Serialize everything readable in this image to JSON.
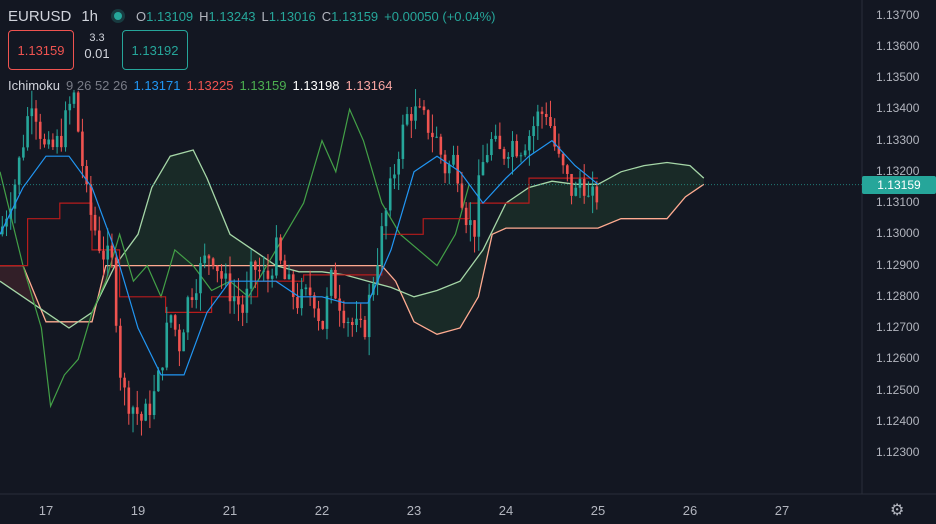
{
  "header": {
    "symbol": "EURUSD",
    "timeframe": "1h",
    "ohlc": [
      {
        "k": "O",
        "v": "1.13109"
      },
      {
        "k": "H",
        "v": "1.13243"
      },
      {
        "k": "L",
        "v": "1.13016"
      },
      {
        "k": "C",
        "v": "1.13159"
      }
    ],
    "change": "+0.00050 (+0.04%)"
  },
  "trade": {
    "sell_price": "1.13159",
    "buy_price": "1.13192",
    "spread_top": "3.3",
    "spread_bottom": "0.01"
  },
  "indicator": {
    "name": "Ichimoku",
    "params": "9 26 52 26",
    "values": [
      "1.13171",
      "1.13225",
      "1.13159",
      "1.13198",
      "1.13164"
    ],
    "colors": [
      "#2196f3",
      "#ef5350",
      "#4caf50",
      "#ffffff",
      "#f8a5a2"
    ]
  },
  "price_tag": "1.13159",
  "colors": {
    "up": "#26a69a",
    "down": "#ef5350",
    "tenkan": "#2196f3",
    "kijun": "#b71c1c",
    "chikou": "#43a047",
    "spanA": "#a5d6a7",
    "spanB": "#ffab91"
  },
  "chart_data": {
    "type": "candlestick",
    "y_ticks": [
      "1.13700",
      "1.13600",
      "1.13500",
      "1.13400",
      "1.13300",
      "1.13200",
      "1.13100",
      "1.13000",
      "1.12900",
      "1.12800",
      "1.12700",
      "1.12600",
      "1.12500",
      "1.12400",
      "1.12300"
    ],
    "x_ticks": [
      "17",
      "19",
      "21",
      "22",
      "23",
      "24",
      "25",
      "26",
      "27"
    ],
    "ylim": [
      1.1222,
      1.1375
    ],
    "x_tick_positions": [
      1.0,
      3.0,
      5.0,
      7.0,
      9.0,
      11.0,
      13.0,
      15.0,
      17.0
    ],
    "xlim": [
      0.0,
      18.77
    ],
    "last_close": 1.13159,
    "close_path": [
      [
        0.0,
        1.13
      ],
      [
        0.35,
        1.1318
      ],
      [
        0.7,
        1.1345
      ],
      [
        1.0,
        1.1325
      ],
      [
        1.3,
        1.133
      ],
      [
        1.6,
        1.1345
      ],
      [
        1.9,
        1.131
      ],
      [
        2.2,
        1.1295
      ],
      [
        2.45,
        1.129
      ],
      [
        2.65,
        1.125
      ],
      [
        2.9,
        1.1245
      ],
      [
        3.1,
        1.124
      ],
      [
        3.4,
        1.125
      ],
      [
        3.7,
        1.1275
      ],
      [
        3.9,
        1.1265
      ],
      [
        4.1,
        1.128
      ],
      [
        4.4,
        1.129
      ],
      [
        4.6,
        1.1295
      ],
      [
        4.85,
        1.1285
      ],
      [
        5.1,
        1.128
      ],
      [
        5.3,
        1.1275
      ],
      [
        5.5,
        1.129
      ],
      [
        5.8,
        1.1285
      ],
      [
        6.0,
        1.1295
      ],
      [
        6.2,
        1.1285
      ],
      [
        6.5,
        1.1278
      ],
      [
        6.8,
        1.1282
      ],
      [
        7.0,
        1.127
      ],
      [
        7.2,
        1.1285
      ],
      [
        7.5,
        1.1275
      ],
      [
        7.7,
        1.127
      ],
      [
        7.9,
        1.1268
      ],
      [
        8.1,
        1.1285
      ],
      [
        8.3,
        1.13
      ],
      [
        8.5,
        1.1315
      ],
      [
        8.7,
        1.133
      ],
      [
        8.9,
        1.134
      ],
      [
        9.1,
        1.1338
      ],
      [
        9.3,
        1.1335
      ],
      [
        9.5,
        1.133
      ],
      [
        9.7,
        1.132
      ],
      [
        9.9,
        1.1325
      ],
      [
        10.1,
        1.1308
      ],
      [
        10.3,
        1.13
      ],
      [
        10.45,
        1.132
      ],
      [
        10.65,
        1.133
      ],
      [
        10.9,
        1.1325
      ],
      [
        11.1,
        1.133
      ],
      [
        11.3,
        1.1328
      ],
      [
        11.5,
        1.1332
      ],
      [
        11.7,
        1.1338
      ],
      [
        11.9,
        1.134
      ],
      [
        12.1,
        1.1325
      ],
      [
        12.3,
        1.1318
      ],
      [
        12.5,
        1.1312
      ],
      [
        12.65,
        1.132
      ],
      [
        12.8,
        1.131
      ],
      [
        12.95,
        1.1312
      ],
      [
        13.1,
        1.1316
      ]
    ],
    "tenkan_path": [
      [
        0.0,
        1.13
      ],
      [
        0.5,
        1.1315
      ],
      [
        1.0,
        1.1325
      ],
      [
        1.5,
        1.1325
      ],
      [
        2.0,
        1.1315
      ],
      [
        2.5,
        1.1295
      ],
      [
        3.0,
        1.127
      ],
      [
        3.5,
        1.1255
      ],
      [
        4.0,
        1.1255
      ],
      [
        4.5,
        1.1275
      ],
      [
        5.0,
        1.1285
      ],
      [
        5.5,
        1.1285
      ],
      [
        6.0,
        1.1285
      ],
      [
        6.5,
        1.128
      ],
      [
        7.0,
        1.128
      ],
      [
        7.5,
        1.1278
      ],
      [
        8.0,
        1.1278
      ],
      [
        8.5,
        1.1295
      ],
      [
        9.0,
        1.132
      ],
      [
        9.5,
        1.1325
      ],
      [
        10.0,
        1.132
      ],
      [
        10.5,
        1.131
      ],
      [
        11.0,
        1.1318
      ],
      [
        11.5,
        1.1325
      ],
      [
        12.0,
        1.133
      ],
      [
        12.5,
        1.1322
      ],
      [
        13.0,
        1.1316
      ]
    ],
    "kijun_path": [
      [
        0.0,
        1.129
      ],
      [
        0.6,
        1.129
      ],
      [
        0.6,
        1.1305
      ],
      [
        1.3,
        1.1305
      ],
      [
        1.3,
        1.131
      ],
      [
        2.0,
        1.131
      ],
      [
        2.0,
        1.1295
      ],
      [
        2.6,
        1.1295
      ],
      [
        2.6,
        1.128
      ],
      [
        3.6,
        1.128
      ],
      [
        3.6,
        1.1275
      ],
      [
        4.6,
        1.1275
      ],
      [
        4.6,
        1.128
      ],
      [
        5.6,
        1.128
      ],
      [
        5.6,
        1.1285
      ],
      [
        6.6,
        1.1285
      ],
      [
        6.6,
        1.1287
      ],
      [
        8.3,
        1.1287
      ],
      [
        8.3,
        1.13
      ],
      [
        9.2,
        1.13
      ],
      [
        9.2,
        1.1305
      ],
      [
        10.2,
        1.1305
      ],
      [
        10.2,
        1.131
      ],
      [
        11.5,
        1.131
      ],
      [
        11.5,
        1.1318
      ],
      [
        13.0,
        1.1318
      ]
    ],
    "chikou_path": [
      [
        0.0,
        1.132
      ],
      [
        0.5,
        1.129
      ],
      [
        0.9,
        1.127
      ],
      [
        1.1,
        1.1245
      ],
      [
        1.4,
        1.1255
      ],
      [
        1.7,
        1.126
      ],
      [
        2.0,
        1.1275
      ],
      [
        2.3,
        1.1285
      ],
      [
        2.6,
        1.13
      ],
      [
        2.9,
        1.1285
      ],
      [
        3.2,
        1.129
      ],
      [
        3.5,
        1.128
      ],
      [
        3.8,
        1.1295
      ],
      [
        4.2,
        1.129
      ],
      [
        4.6,
        1.1282
      ],
      [
        5.0,
        1.1285
      ],
      [
        5.4,
        1.128
      ],
      [
        5.8,
        1.129
      ],
      [
        6.2,
        1.13
      ],
      [
        6.6,
        1.131
      ],
      [
        7.0,
        1.133
      ],
      [
        7.3,
        1.132
      ],
      [
        7.6,
        1.134
      ],
      [
        7.9,
        1.133
      ],
      [
        8.3,
        1.131
      ],
      [
        8.7,
        1.13
      ],
      [
        9.1,
        1.1295
      ],
      [
        9.5,
        1.129
      ],
      [
        9.9,
        1.13
      ],
      [
        10.2,
        1.1316
      ]
    ],
    "spanA_path": [
      [
        0.0,
        1.1285
      ],
      [
        0.5,
        1.128
      ],
      [
        1.0,
        1.1275
      ],
      [
        1.5,
        1.127
      ],
      [
        2.0,
        1.1275
      ],
      [
        2.5,
        1.129
      ],
      [
        3.0,
        1.13
      ],
      [
        3.3,
        1.1315
      ],
      [
        3.7,
        1.1325
      ],
      [
        4.2,
        1.1327
      ],
      [
        4.5,
        1.1318
      ],
      [
        5.0,
        1.13
      ],
      [
        5.5,
        1.1295
      ],
      [
        6.0,
        1.129
      ],
      [
        6.5,
        1.1288
      ],
      [
        7.0,
        1.1288
      ],
      [
        7.5,
        1.1287
      ],
      [
        8.0,
        1.1285
      ],
      [
        8.5,
        1.1283
      ],
      [
        9.0,
        1.128
      ],
      [
        9.5,
        1.1282
      ],
      [
        10.0,
        1.1285
      ],
      [
        10.5,
        1.1295
      ],
      [
        11.0,
        1.131
      ],
      [
        11.5,
        1.1315
      ],
      [
        12.0,
        1.1317
      ],
      [
        12.5,
        1.1316
      ],
      [
        13.0,
        1.1316
      ],
      [
        13.5,
        1.132
      ],
      [
        14.0,
        1.1322
      ],
      [
        14.5,
        1.1323
      ],
      [
        15.0,
        1.1322
      ],
      [
        15.3,
        1.1318
      ]
    ],
    "spanB_path": [
      [
        0.0,
        1.129
      ],
      [
        0.5,
        1.129
      ],
      [
        1.0,
        1.1272
      ],
      [
        2.0,
        1.1272
      ],
      [
        2.3,
        1.129
      ],
      [
        3.0,
        1.129
      ],
      [
        4.0,
        1.129
      ],
      [
        5.0,
        1.129
      ],
      [
        6.0,
        1.129
      ],
      [
        7.0,
        1.129
      ],
      [
        8.3,
        1.129
      ],
      [
        8.6,
        1.1285
      ],
      [
        9.0,
        1.1272
      ],
      [
        9.5,
        1.1268
      ],
      [
        10.0,
        1.127
      ],
      [
        10.4,
        1.128
      ],
      [
        10.7,
        1.13
      ],
      [
        11.0,
        1.1302
      ],
      [
        12.0,
        1.1302
      ],
      [
        13.0,
        1.1302
      ],
      [
        13.5,
        1.1305
      ],
      [
        14.5,
        1.1305
      ],
      [
        14.9,
        1.1312
      ],
      [
        15.3,
        1.1316
      ]
    ],
    "x": [
      "17",
      "19",
      "21",
      "22",
      "23",
      "24",
      "25",
      "26",
      "27"
    ]
  },
  "settings_icon": "gear-icon"
}
